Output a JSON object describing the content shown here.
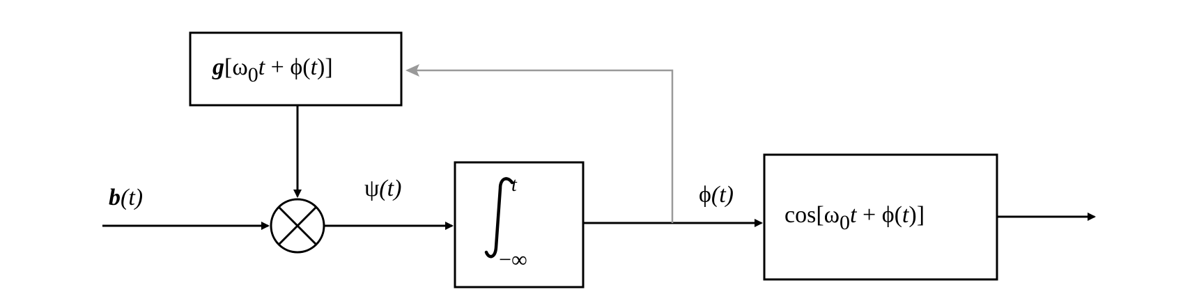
{
  "diagram": {
    "input_signal": {
      "name": "b",
      "arg": "(t)"
    },
    "multiplier_output": {
      "name": "ψ",
      "arg": "(t)"
    },
    "integrator": {
      "upper_limit": "t",
      "lower_limit": "−∞"
    },
    "integrator_output": {
      "name": "ϕ",
      "arg": "(t)"
    },
    "feedback_block": {
      "func": "g",
      "open": "[",
      "omega": "ω",
      "omega_sub": "0",
      "t": "t",
      "plus": " + ",
      "phi": "ϕ",
      "phi_arg_open": "(",
      "phi_arg_t": "t",
      "phi_arg_close": ")",
      "close": "]"
    },
    "output_block": {
      "func": "cos",
      "open": "[",
      "omega": "ω",
      "omega_sub": "0",
      "t": "t",
      "plus": " + ",
      "phi": "ϕ",
      "phi_arg_open": "(",
      "phi_arg_t": "t",
      "phi_arg_close": ")",
      "close": "]"
    },
    "colors": {
      "line": "#000000",
      "feedback_line": "#999999"
    }
  }
}
